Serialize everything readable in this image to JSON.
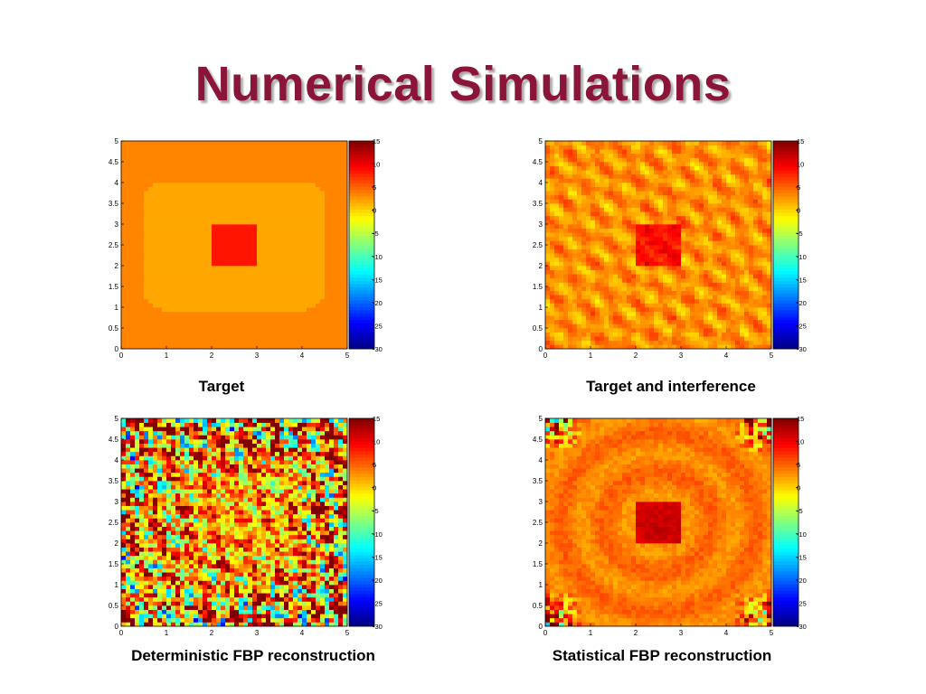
{
  "slide": {
    "title": "Numerical Simulations"
  },
  "chart_data": [
    {
      "type": "heatmap",
      "kind": "target",
      "title": "",
      "caption": "Target",
      "xlabel": "",
      "ylabel": "",
      "xlim": [
        0,
        5
      ],
      "ylim": [
        0,
        5
      ],
      "xticks": [
        "0",
        "1",
        "2",
        "3",
        "4",
        "5"
      ],
      "yticks": [
        "0",
        "0.5",
        "1",
        "1.5",
        "2",
        "2.5",
        "3",
        "3.5",
        "4",
        "4.5",
        "5"
      ],
      "grid_size": 50,
      "colormap": "jet",
      "clim": [
        -30,
        15
      ],
      "colorbar_ticks": [
        "15",
        "10",
        "5",
        "0",
        "-5",
        "-10",
        "-15",
        "-20",
        "-25",
        "-30"
      ],
      "regions": [
        {
          "shape": "background",
          "value": 3.5
        },
        {
          "shape": "rounded-square",
          "x": [
            0.5,
            4.5
          ],
          "y": [
            0.95,
            4.05
          ],
          "value": 2
        },
        {
          "shape": "square",
          "x": [
            2,
            3
          ],
          "y": [
            2,
            3
          ],
          "value": 8.5
        }
      ]
    },
    {
      "type": "heatmap",
      "kind": "target-interference",
      "title": "",
      "caption": "Target and interference",
      "xlabel": "",
      "ylabel": "",
      "xlim": [
        0,
        5
      ],
      "ylim": [
        0,
        5
      ],
      "xticks": [
        "0",
        "1",
        "2",
        "3",
        "4",
        "5"
      ],
      "yticks": [
        "0",
        "0.5",
        "1",
        "1.5",
        "2",
        "2.5",
        "3",
        "3.5",
        "4",
        "4.5",
        "5"
      ],
      "grid_size": 50,
      "colormap": "jet",
      "clim": [
        -30,
        15
      ],
      "colorbar_ticks": [
        "15",
        "10",
        "5",
        "0",
        "-5",
        "-10",
        "-15",
        "-20",
        "-25",
        "-30"
      ],
      "background_value": 3,
      "target_value": 9,
      "target_extent": {
        "x": [
          2,
          3
        ],
        "y": [
          2,
          3
        ]
      },
      "interference_amplitude": 3.2,
      "seed": 7
    },
    {
      "type": "heatmap",
      "kind": "deterministic-fbp",
      "title": "",
      "caption": "Deterministic FBP reconstruction",
      "xlabel": "",
      "ylabel": "",
      "xlim": [
        0,
        5
      ],
      "ylim": [
        0,
        5
      ],
      "xticks": [
        "0",
        "1",
        "2",
        "3",
        "4",
        "5"
      ],
      "yticks": [
        "0",
        "0.5",
        "1",
        "1.5",
        "2",
        "2.5",
        "3",
        "3.5",
        "4",
        "4.5",
        "5"
      ],
      "grid_size": 50,
      "colormap": "jet",
      "clim": [
        -30,
        15
      ],
      "colorbar_ticks": [
        "15",
        "10",
        "5",
        "0",
        "-5",
        "-10",
        "-15",
        "-20",
        "-25",
        "-30"
      ],
      "background_value": 2,
      "noise_center": 9,
      "noise_edge": 26,
      "seed": 19
    },
    {
      "type": "heatmap",
      "kind": "statistical-fbp",
      "title": "",
      "caption": "Statistical FBP reconstruction",
      "xlabel": "",
      "ylabel": "",
      "xlim": [
        0,
        5
      ],
      "ylim": [
        0,
        5
      ],
      "xticks": [
        "0",
        "1",
        "2",
        "3",
        "4",
        "5"
      ],
      "yticks": [
        "0",
        "0.5",
        "1",
        "1.5",
        "2",
        "2.5",
        "3",
        "3.5",
        "4",
        "4.5",
        "5"
      ],
      "grid_size": 50,
      "colormap": "jet",
      "clim": [
        -30,
        15
      ],
      "colorbar_ticks": [
        "15",
        "10",
        "5",
        "0",
        "-5",
        "-10",
        "-15",
        "-20",
        "-25",
        "-30"
      ],
      "background_value": 4,
      "target_value": 12,
      "target_extent": {
        "x": [
          2,
          3
        ],
        "y": [
          2,
          3
        ]
      },
      "corner_noise": 24,
      "seed": 31
    }
  ]
}
